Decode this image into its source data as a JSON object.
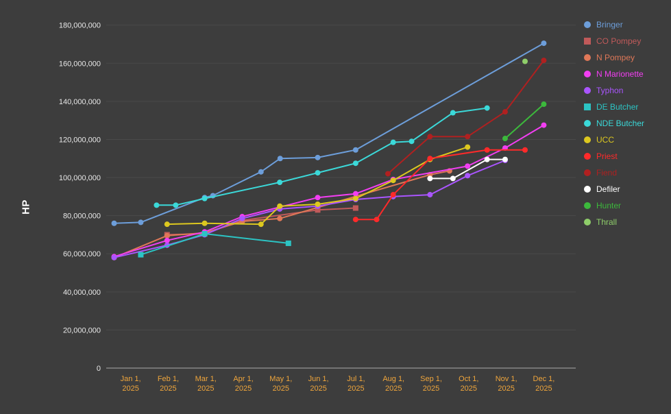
{
  "page": {
    "background": "#3d3d3d"
  },
  "chart_data": {
    "type": "line",
    "title": "",
    "xlabel": "",
    "ylabel": "HP",
    "legend_position": "right",
    "grid": true,
    "background": "#3d3d3d",
    "grid_color": "#4a4a4a",
    "axis_color": "#aaaaaa",
    "y_tick_label_color": "#e8e8e8",
    "x_tick_label_color": "#f0a63c",
    "x_range": [
      -0.65,
      11.85
    ],
    "y_range": [
      0,
      186000000
    ],
    "y_ticks": [
      {
        "value": 0,
        "label": "0"
      },
      {
        "value": 20000000,
        "label": "20,000,000"
      },
      {
        "value": 40000000,
        "label": "40,000,000"
      },
      {
        "value": 60000000,
        "label": "60,000,000"
      },
      {
        "value": 80000000,
        "label": "80,000,000"
      },
      {
        "value": 100000000,
        "label": "100,000,000"
      },
      {
        "value": 120000000,
        "label": "120,000,000"
      },
      {
        "value": 140000000,
        "label": "140,000,000"
      },
      {
        "value": 160000000,
        "label": "160,000,000"
      },
      {
        "value": 180000000,
        "label": "180,000,000"
      }
    ],
    "x_ticks": [
      {
        "m": 0,
        "label": "Jan 1,",
        "sublabel": "2025"
      },
      {
        "m": 1,
        "label": "Feb 1,",
        "sublabel": "2025"
      },
      {
        "m": 2,
        "label": "Mar 1,",
        "sublabel": "2025"
      },
      {
        "m": 3,
        "label": "Apr 1,",
        "sublabel": "2025"
      },
      {
        "m": 4,
        "label": "May 1,",
        "sublabel": "2025"
      },
      {
        "m": 5,
        "label": "Jun 1,",
        "sublabel": "2025"
      },
      {
        "m": 6,
        "label": "Jul 1,",
        "sublabel": "2025"
      },
      {
        "m": 7,
        "label": "Aug 1,",
        "sublabel": "2025"
      },
      {
        "m": 8,
        "label": "Sep 1,",
        "sublabel": "2025"
      },
      {
        "m": 9,
        "label": "Oct 1,",
        "sublabel": "2025"
      },
      {
        "m": 10,
        "label": "Nov 1,",
        "sublabel": "2025"
      },
      {
        "m": 11,
        "label": "Dec 1,",
        "sublabel": "2025"
      }
    ],
    "series": [
      {
        "name": "Bringer",
        "color": "#6d9eda",
        "marker": "circle",
        "points": [
          [
            -0.44,
            76000000
          ],
          [
            0.27,
            76500000
          ],
          [
            1.97,
            89500000
          ],
          [
            2.19,
            90500000
          ],
          [
            3.47,
            103000000
          ],
          [
            3.98,
            110000000
          ],
          [
            4.98,
            110500000
          ],
          [
            5.99,
            114500000
          ],
          [
            11,
            170500000
          ]
        ]
      },
      {
        "name": "CO Pompey",
        "color": "#c05a5a",
        "marker": "square",
        "points": [
          [
            0.97,
            70000000
          ],
          [
            1.97,
            70500000
          ],
          [
            2.97,
            77500000
          ],
          [
            4.98,
            83000000
          ],
          [
            5.99,
            84000000
          ]
        ]
      },
      {
        "name": "N Pompey",
        "color": "#e07858",
        "marker": "circle",
        "points": [
          [
            -0.44,
            58000000
          ],
          [
            0.97,
            69500000
          ],
          [
            1.97,
            71000000
          ],
          [
            2.97,
            77000000
          ],
          [
            3.97,
            78500000
          ],
          [
            7.97,
            101500000
          ],
          [
            8.49,
            103500000
          ]
        ]
      },
      {
        "name": "N Marionette",
        "color": "#f23ef2",
        "marker": "circle",
        "points": [
          [
            -0.44,
            58500000
          ],
          [
            0.97,
            67000000
          ],
          [
            1.97,
            71500000
          ],
          [
            2.97,
            79500000
          ],
          [
            3.97,
            84500000
          ],
          [
            4.98,
            89500000
          ],
          [
            5.99,
            91500000
          ],
          [
            6.99,
            99000000
          ],
          [
            8.97,
            106000000
          ],
          [
            9.97,
            115500000
          ],
          [
            11,
            127500000
          ]
        ]
      },
      {
        "name": "Typhon",
        "color": "#aa55ff",
        "marker": "circle",
        "points": [
          [
            -0.44,
            58000000
          ],
          [
            0.97,
            64500000
          ],
          [
            1.97,
            70000000
          ],
          [
            2.97,
            78500000
          ],
          [
            3.97,
            83500000
          ],
          [
            4.98,
            85000000
          ],
          [
            5.99,
            88500000
          ],
          [
            6.99,
            90000000
          ],
          [
            7.97,
            91000000
          ],
          [
            8.97,
            101000000
          ],
          [
            9.97,
            109000000
          ]
        ]
      },
      {
        "name": "DE Butcher",
        "color": "#2cc4c4",
        "marker": "square",
        "points": [
          [
            0.27,
            59500000
          ],
          [
            1.97,
            70500000
          ],
          [
            4.2,
            65500000
          ]
        ]
      },
      {
        "name": "NDE Butcher",
        "color": "#3bd9d9",
        "marker": "circle",
        "points": [
          [
            0.69,
            85500000
          ],
          [
            1.2,
            85500000
          ],
          [
            1.97,
            89000000
          ],
          [
            3.97,
            97500000
          ],
          [
            4.98,
            102500000
          ],
          [
            5.99,
            107500000
          ],
          [
            6.99,
            118500000
          ],
          [
            7.48,
            119000000
          ],
          [
            8.58,
            134000000
          ],
          [
            9.49,
            136500000
          ]
        ]
      },
      {
        "name": "UCC",
        "color": "#ddc81f",
        "marker": "circle",
        "points": [
          [
            0.97,
            75500000
          ],
          [
            1.97,
            76000000
          ],
          [
            3.47,
            75500000
          ],
          [
            3.97,
            85000000
          ],
          [
            4.98,
            86000000
          ],
          [
            5.99,
            89000000
          ],
          [
            6.99,
            98500000
          ],
          [
            7.97,
            109500000
          ],
          [
            8.97,
            116000000
          ]
        ]
      },
      {
        "name": "Priest",
        "color": "#ff2a2a",
        "marker": "circle",
        "points": [
          [
            5.99,
            78000000
          ],
          [
            6.55,
            78000000
          ],
          [
            6.99,
            91000000
          ],
          [
            7.97,
            110000000
          ],
          [
            9.49,
            114500000
          ],
          [
            10.5,
            114500000
          ]
        ]
      },
      {
        "name": "Fiend",
        "color": "#b02020",
        "marker": "circle",
        "points": [
          [
            6.85,
            102000000
          ],
          [
            7.97,
            121500000
          ],
          [
            8.97,
            121500000
          ],
          [
            9.97,
            134500000
          ],
          [
            11,
            161500000
          ]
        ]
      },
      {
        "name": "Defiler",
        "color": "#ffffff",
        "marker": "circle",
        "points": [
          [
            7.97,
            99500000
          ],
          [
            8.58,
            99500000
          ],
          [
            9.49,
            109500000
          ],
          [
            9.97,
            109500000
          ]
        ]
      },
      {
        "name": "Hunter",
        "color": "#3cb93c",
        "marker": "circle",
        "points": [
          [
            9.97,
            120500000
          ],
          [
            11,
            138500000
          ]
        ]
      },
      {
        "name": "Thrall",
        "color": "#8fce6a",
        "marker": "circle",
        "points": [
          [
            10.5,
            161000000
          ]
        ]
      }
    ]
  }
}
